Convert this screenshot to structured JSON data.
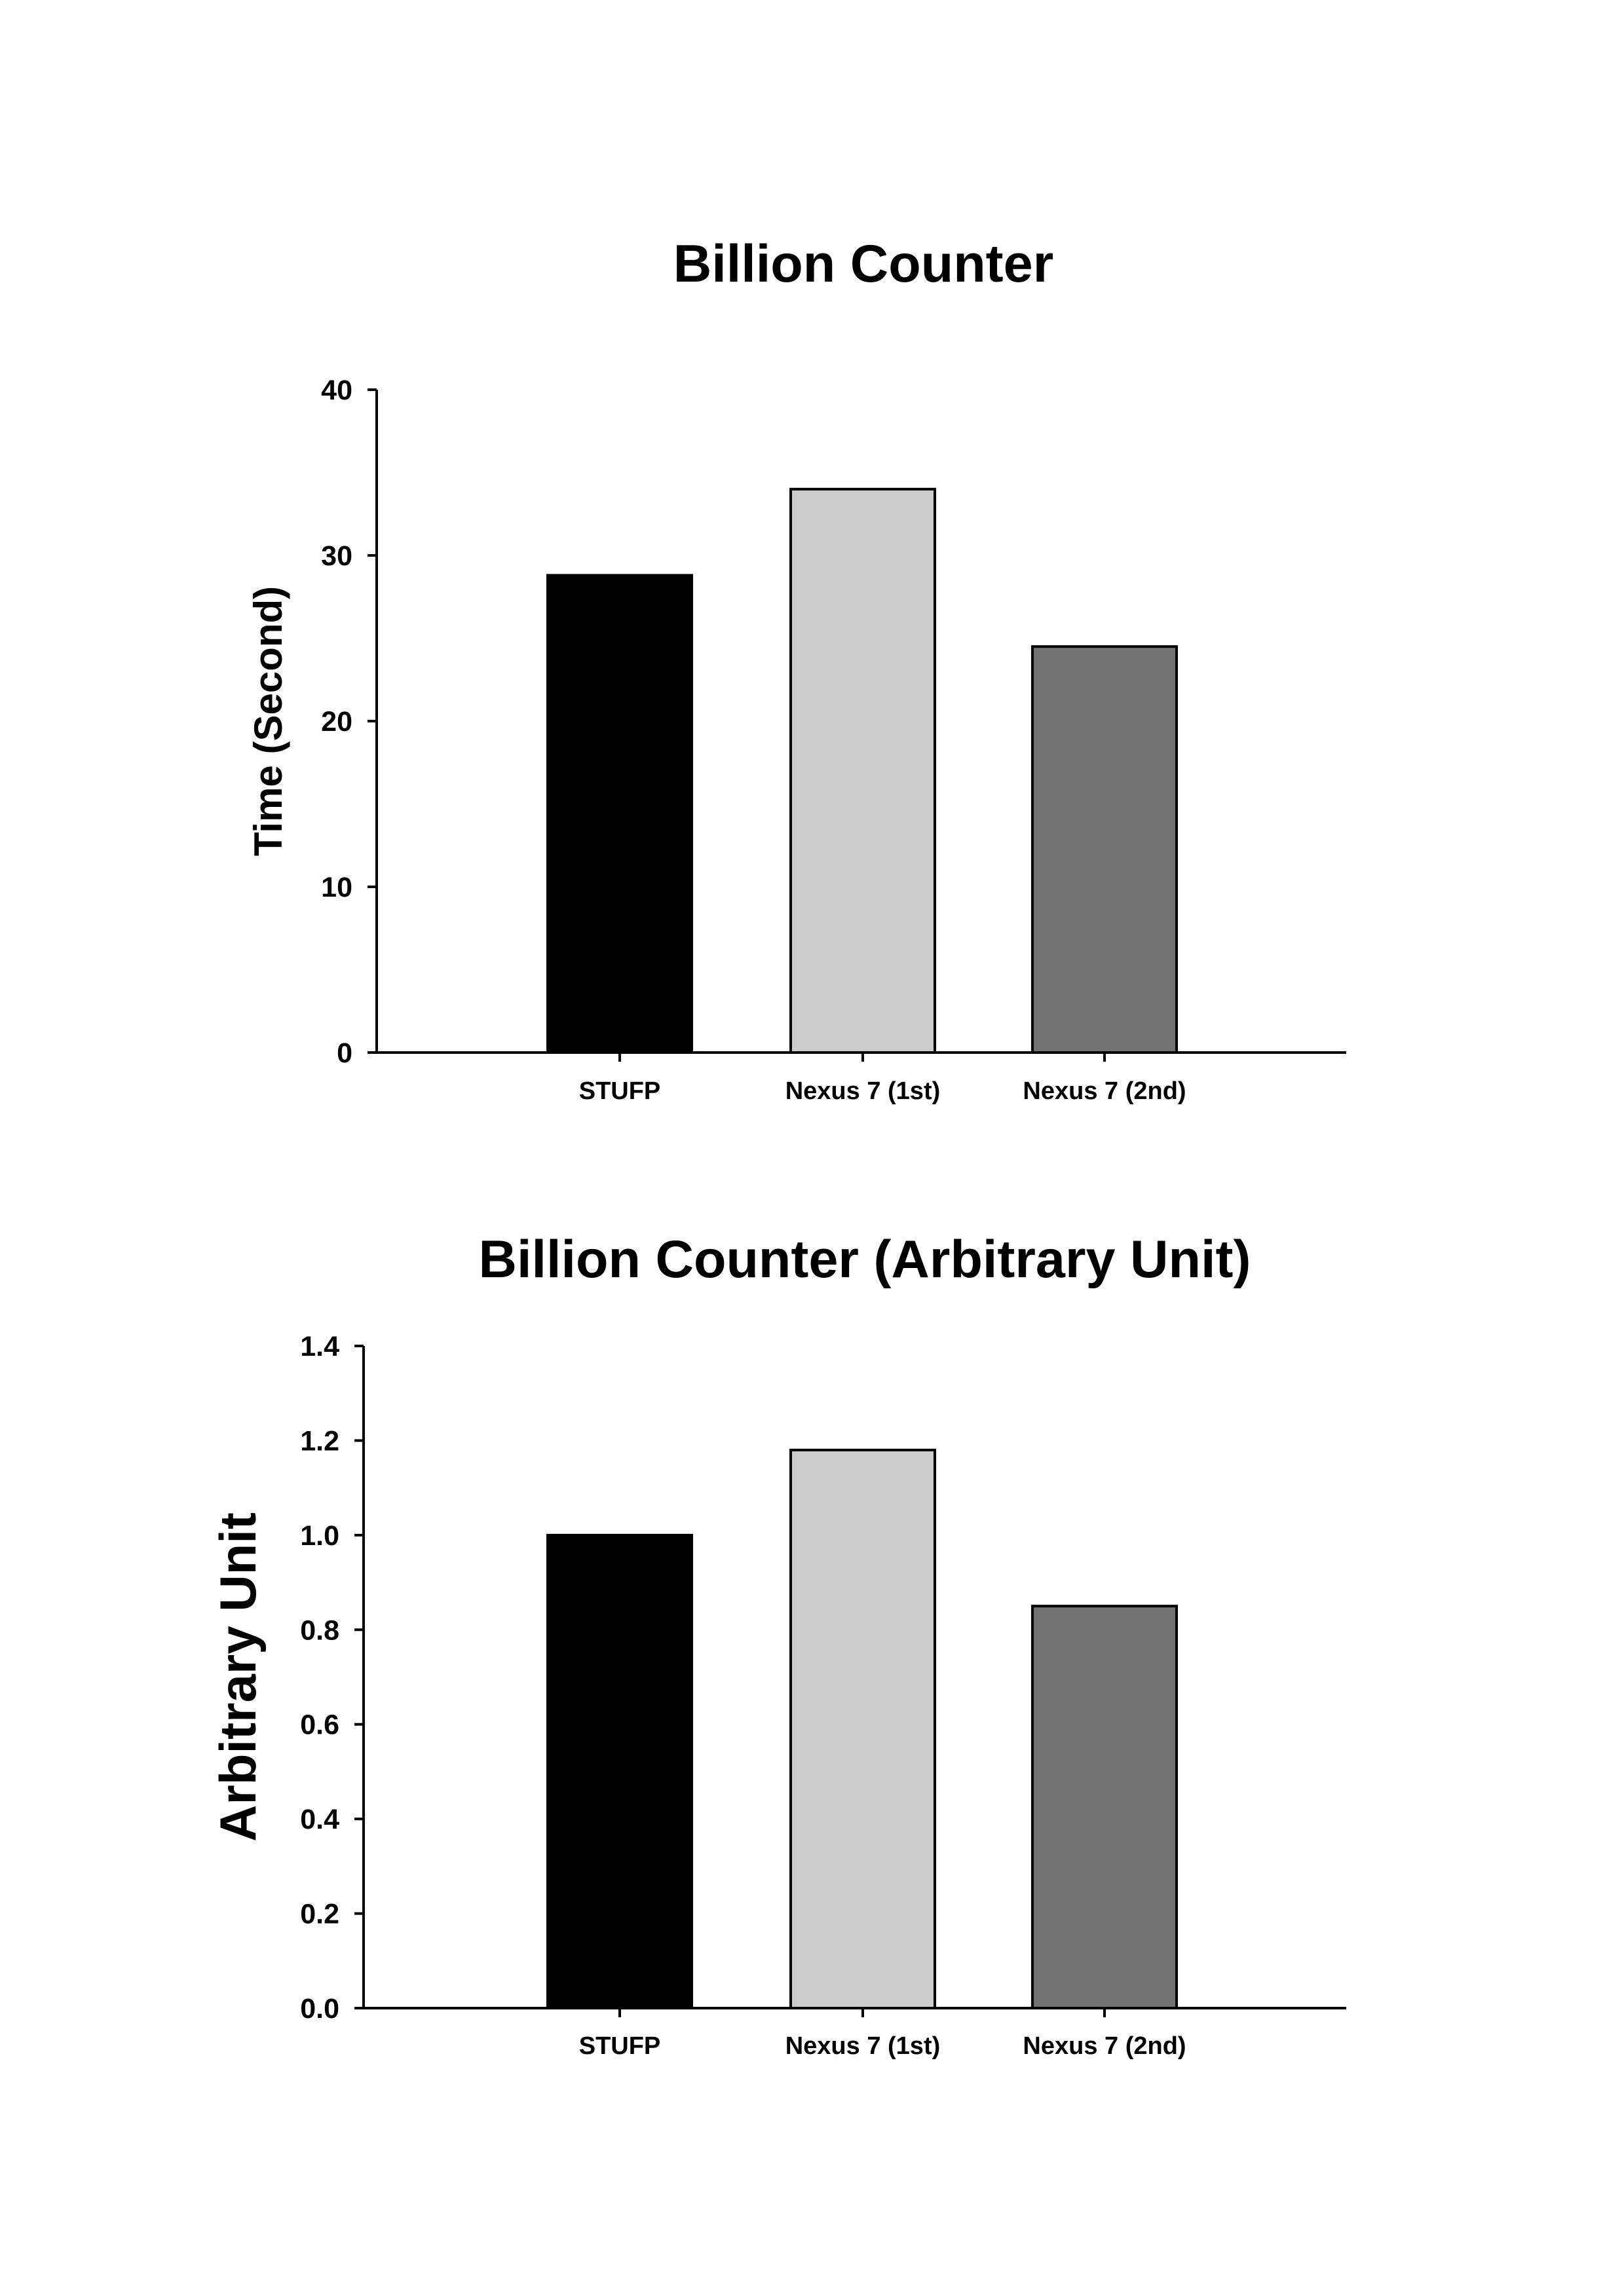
{
  "chart_data": [
    {
      "type": "bar",
      "title": "Billion Counter",
      "xlabel": "",
      "ylabel": "Time (Second)",
      "categories": [
        "STUFP",
        "Nexus 7 (1st)",
        "Nexus 7 (2nd)"
      ],
      "values": [
        28.8,
        34.0,
        24.5
      ],
      "colors": [
        "#000000",
        "#cccccc",
        "#737373"
      ],
      "ylim": [
        0,
        40
      ],
      "yticks": [
        "0",
        "10",
        "20",
        "30",
        "40"
      ],
      "grid": false,
      "legend": "none"
    },
    {
      "type": "bar",
      "title": "Billion Counter (Arbitrary Unit)",
      "xlabel": "",
      "ylabel": "Arbitrary Unit",
      "categories": [
        "STUFP",
        "Nexus 7 (1st)",
        "Nexus 7 (2nd)"
      ],
      "values": [
        1.0,
        1.18,
        0.85
      ],
      "colors": [
        "#000000",
        "#cccccc",
        "#737373"
      ],
      "ylim": [
        0,
        1.4
      ],
      "yticks": [
        "0.0",
        "0.2",
        "0.4",
        "0.6",
        "0.8",
        "1.0",
        "1.2",
        "1.4"
      ],
      "grid": false,
      "legend": "none"
    }
  ]
}
